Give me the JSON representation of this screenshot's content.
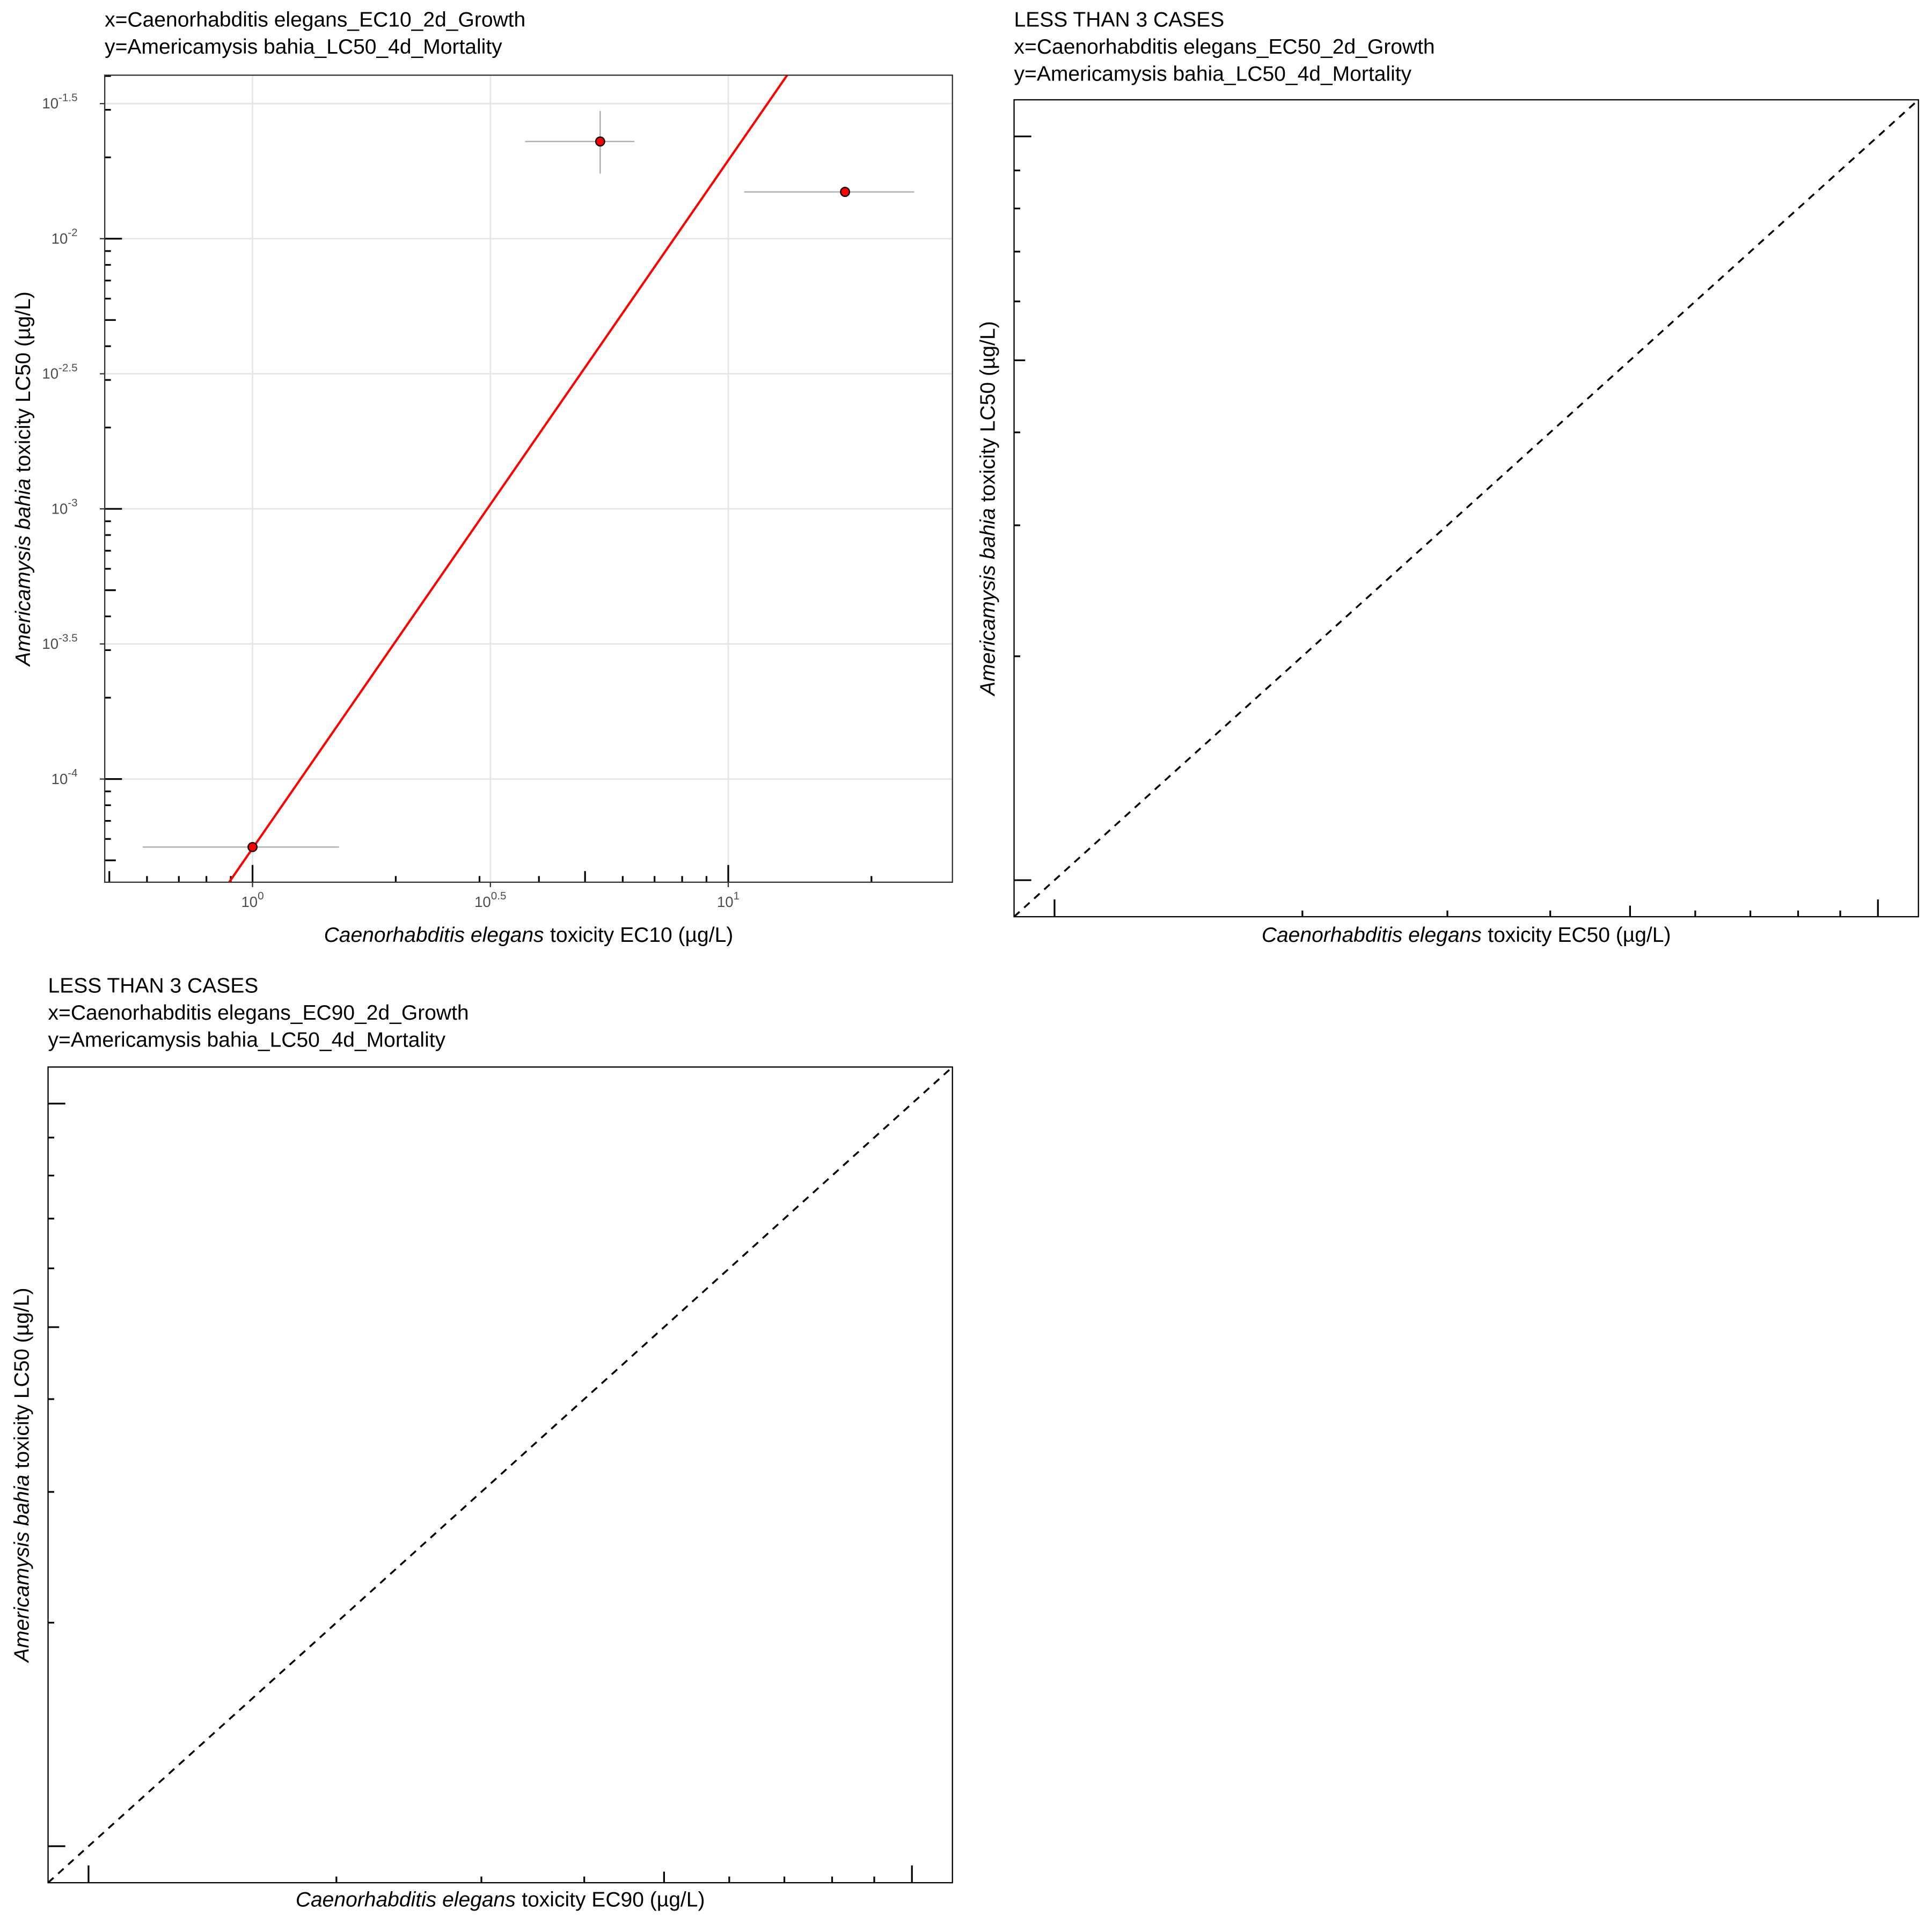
{
  "chart_data": [
    {
      "type": "scatter",
      "title": [
        "x=Caenorhabditis elegans_EC10_2d_Growth",
        "y=Americamysis bahia_LC50_4d_Mortality"
      ],
      "xlabel_italic": "Caenorhabditis elegans",
      "xlabel": "toxicity EC10 (µg/L)",
      "ylabel_italic": "Americamysis bahia",
      "ylabel": "toxicity LC50 (µg/L)",
      "log_x": true,
      "log_y": true,
      "grid": true,
      "xlim": [
        0.489,
        29.6
      ],
      "ylim": [
        4.15e-05,
        0.0403
      ],
      "xticks": [
        {
          "value": 1,
          "label": "10^0"
        },
        {
          "value": 3.16228,
          "label": "10^0.5"
        },
        {
          "value": 10,
          "label": "10^1"
        }
      ],
      "yticks": [
        {
          "value": 0.0316228,
          "label": "10^-1.5"
        },
        {
          "value": 0.01,
          "label": "10^-2"
        },
        {
          "value": 0.00316228,
          "label": "10^-2.5"
        },
        {
          "value": 0.001,
          "label": "10^-3"
        },
        {
          "value": 0.000316228,
          "label": "10^-3.5"
        },
        {
          "value": 0.0001,
          "label": "10^-4"
        }
      ],
      "xminorticks": [
        0.5,
        0.6,
        0.7,
        0.8,
        0.9,
        1,
        2,
        3,
        4,
        5,
        6,
        7,
        8,
        9,
        10,
        20
      ],
      "yminorticks": [
        5e-05,
        6e-05,
        7e-05,
        8e-05,
        9e-05,
        0.0001,
        0.0002,
        0.0003,
        0.0004,
        0.0005,
        0.0006,
        0.0007,
        0.0008,
        0.0009,
        0.001,
        0.002,
        0.003,
        0.004,
        0.005,
        0.006,
        0.007,
        0.008,
        0.009,
        0.01,
        0.02,
        0.03,
        0.04
      ],
      "x": [
        1.0,
        5.38,
        17.6
      ],
      "y": [
        5.6e-05,
        0.0229,
        0.0149
      ],
      "xerr_low": [
        0.588,
        3.74,
        10.8
      ],
      "xerr_high": [
        1.52,
        6.35,
        24.6
      ],
      "yerr_low": [
        null,
        0.0174,
        null
      ],
      "yerr_high": [
        null,
        0.0297,
        null
      ],
      "color": "#ff0000",
      "error_color": "#aaaaaa",
      "fit": {
        "x": [
          0.893,
          13.3
        ],
        "y": [
          4.15e-05,
          0.0403
        ],
        "color": "#ff0000"
      }
    },
    {
      "type": "scatter",
      "title": [
        "LESS THAN 3 CASES",
        "x=Caenorhabditis elegans_EC50_2d_Growth",
        "y=Americamysis bahia_LC50_4d_Mortality"
      ],
      "xlabel_italic": "Caenorhabditis elegans",
      "xlabel": "toxicity EC50 (µg/L)",
      "ylabel_italic": "Americamysis bahia",
      "ylabel": "toxicity LC50 (µg/L)",
      "log_x": true,
      "log_y": true,
      "grid": false,
      "diagonal": true,
      "xlim": [
        0.893,
        11.2
      ],
      "ylim": [
        0.893,
        11.2
      ],
      "xminorticks": [
        1,
        2,
        3,
        4,
        5,
        6,
        7,
        8,
        9,
        10
      ],
      "yminorticks": [
        1,
        2,
        3,
        4,
        5,
        6,
        7,
        8,
        9,
        10
      ]
    },
    {
      "type": "scatter",
      "title": [
        "LESS THAN 3 CASES",
        "x=Caenorhabditis elegans_EC90_2d_Growth",
        "y=Americamysis bahia_LC50_4d_Mortality"
      ],
      "xlabel_italic": "Caenorhabditis elegans",
      "xlabel": "toxicity EC90 (µg/L)",
      "ylabel_italic": "Americamysis bahia",
      "ylabel": "toxicity LC50 (µg/L)",
      "log_x": true,
      "log_y": true,
      "grid": false,
      "diagonal": true,
      "xlim": [
        0.893,
        11.2
      ],
      "ylim": [
        0.893,
        11.2
      ],
      "xminorticks": [
        1,
        2,
        3,
        4,
        5,
        6,
        7,
        8,
        9,
        10
      ],
      "yminorticks": [
        1,
        2,
        3,
        4,
        5,
        6,
        7,
        8,
        9,
        10
      ]
    }
  ]
}
